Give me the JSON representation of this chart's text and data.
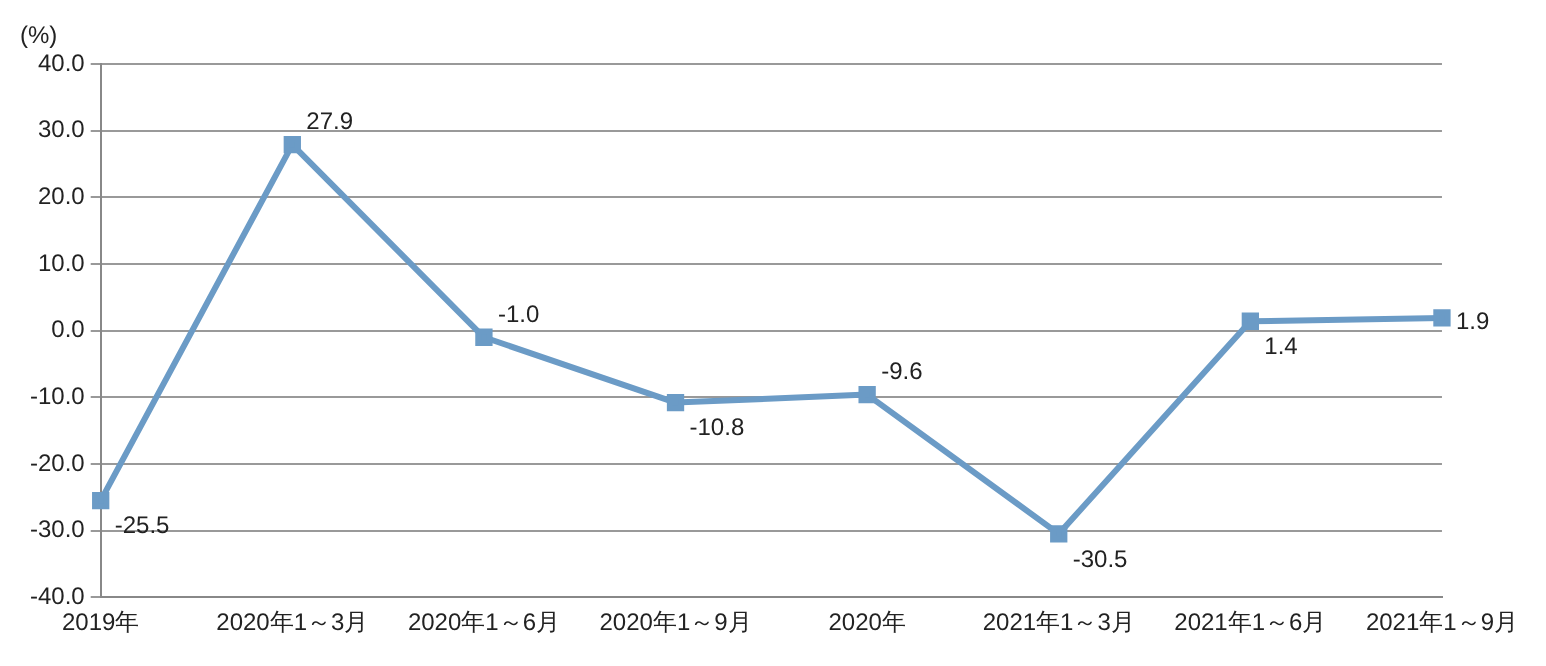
{
  "chart_data": {
    "type": "line",
    "ylabel": "(%)",
    "categories": [
      "2019年",
      "2020年1～3月",
      "2020年1～6月",
      "2020年1～9月",
      "2020年",
      "2021年1～3月",
      "2021年1～6月",
      "2021年1～9月"
    ],
    "values": [
      -25.5,
      27.9,
      -1.0,
      -10.8,
      -9.6,
      -30.5,
      1.4,
      1.9
    ],
    "value_labels": [
      "-25.5",
      "27.9",
      "-1.0",
      "-10.8",
      "-9.6",
      "-30.5",
      "1.4",
      "1.9"
    ],
    "color": "#6b9bc6",
    "marker": "square",
    "line_style": "solid",
    "grid": "y",
    "legend": false,
    "ylim": [
      -40,
      40
    ],
    "yticks": [
      {
        "value": -40,
        "label": "-40.0"
      },
      {
        "value": -30,
        "label": "-30.0"
      },
      {
        "value": -20,
        "label": "-20.0"
      },
      {
        "value": -10,
        "label": "-10.0"
      },
      {
        "value": 0,
        "label": "0.0"
      },
      {
        "value": 10,
        "label": "10.0"
      },
      {
        "value": 20,
        "label": "20.0"
      },
      {
        "value": 30,
        "label": "30.0"
      },
      {
        "value": 40,
        "label": "40.0"
      }
    ]
  }
}
